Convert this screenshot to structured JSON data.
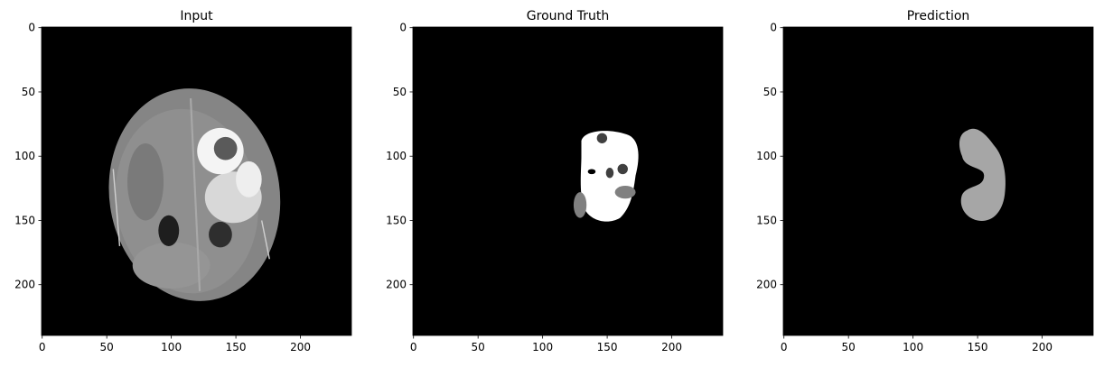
{
  "chart_data": [
    {
      "type": "image",
      "title": "Input",
      "xlim": [
        -0.5,
        239.5
      ],
      "ylim": [
        239.5,
        -0.5
      ],
      "xticks": [
        0,
        50,
        100,
        150,
        200
      ],
      "yticks": [
        0,
        50,
        100,
        150,
        200
      ]
    },
    {
      "type": "image",
      "title": "Ground Truth",
      "xlim": [
        -0.5,
        239.5
      ],
      "ylim": [
        239.5,
        -0.5
      ],
      "xticks": [
        0,
        50,
        100,
        150,
        200
      ],
      "yticks": [
        0,
        50,
        100,
        150,
        200
      ]
    },
    {
      "type": "image",
      "title": "Prediction",
      "xlim": [
        -0.5,
        239.5
      ],
      "ylim": [
        239.5,
        -0.5
      ],
      "xticks": [
        0,
        50,
        100,
        150,
        200
      ],
      "yticks": [
        0,
        50,
        100,
        150,
        200
      ]
    }
  ]
}
